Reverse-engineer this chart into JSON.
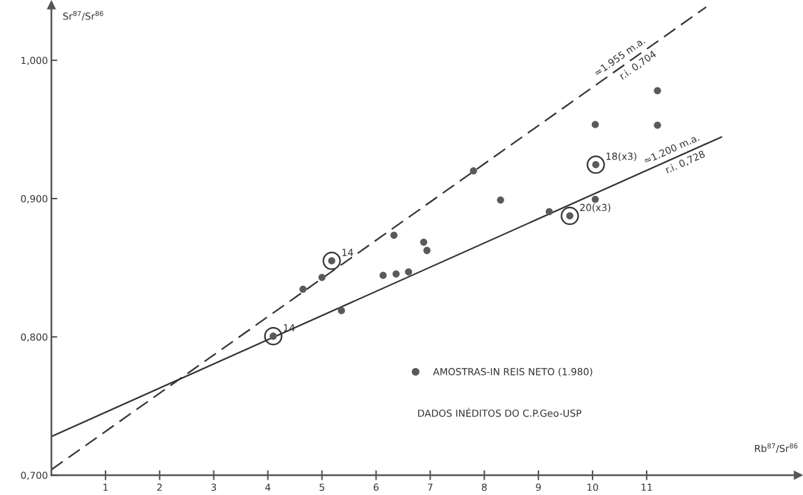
{
  "chart_data": {
    "type": "scatter",
    "xlabel": "Rb$^{87}$/Sr$^{86}$",
    "ylabel": "Sr$^{87}$/Sr$^{86}$",
    "xlim": [
      0,
      13.8
    ],
    "xticks": [
      1,
      2,
      3,
      4,
      5,
      6,
      7,
      8,
      9,
      10,
      11
    ],
    "ylim": [
      0.7,
      1.04
    ],
    "yticks": [
      {
        "value": 0.7,
        "label": "0,700"
      },
      {
        "value": 0.8,
        "label": "0,800"
      },
      {
        "value": 0.9,
        "label": "0,900"
      },
      {
        "value": 1.0,
        "label": "1,000"
      }
    ],
    "grid": false,
    "legend": "bottom",
    "series": [
      {
        "name": "AMOSTRAS-IN REIS NETO (1.980)",
        "marker": "circle",
        "color": "#5a5a5a",
        "x": [
          4.1,
          4.65,
          5.0,
          5.18,
          5.36,
          6.13,
          6.33,
          6.37,
          6.6,
          6.88,
          6.94,
          7.8,
          8.3,
          9.2,
          9.58,
          10.05,
          10.06,
          10.05,
          11.2,
          11.2
        ],
        "values": [
          0.8005,
          0.8345,
          0.843,
          0.855,
          0.819,
          0.8445,
          0.8735,
          0.8455,
          0.847,
          0.8685,
          0.8625,
          0.92,
          0.899,
          0.8905,
          0.8875,
          0.8995,
          0.9245,
          0.9535,
          0.953,
          0.978
        ]
      },
      {
        "type": "line",
        "color": "#333333",
        "line_style": "dashed",
        "x": [
          0,
          12.1
        ],
        "values": [
          0.704,
          1.0385
        ]
      },
      {
        "type": "line",
        "color": "#333333",
        "line_style": "solid",
        "x": [
          0,
          12.38
        ],
        "values": [
          0.728,
          0.9445
        ]
      }
    ],
    "annotations": [
      {
        "text": "14",
        "x": 5.18,
        "y": 0.855
      },
      {
        "text": "14",
        "x": 4.1,
        "y": 0.8005
      },
      {
        "text": "18(x3)",
        "x": 10.06,
        "y": 0.9245
      },
      {
        "text": "20(x3)",
        "x": 9.58,
        "y": 0.8875
      },
      {
        "text": "≈1.955 m.a.",
        "x": 10.6,
        "y": 0.997
      },
      {
        "text": "r.i. 0,704",
        "x": 10.75,
        "y": 1.0012
      },
      {
        "text": "≈1.200 m.a.",
        "x": 11.53,
        "y": 0.9296
      },
      {
        "text": "r.i. 0,728",
        "x": 11.65,
        "y": 0.9317
      },
      "DADOS INÉDITOS DO C.P.Geo-USP"
    ]
  }
}
